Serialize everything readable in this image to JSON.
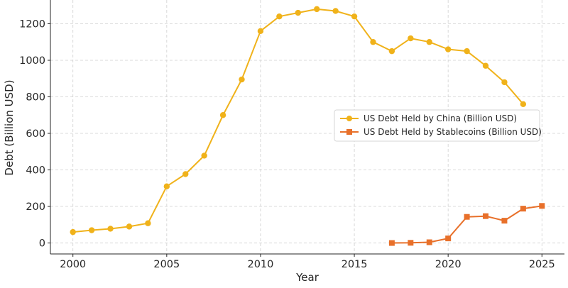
{
  "chart_data": {
    "type": "line",
    "xlabel": "Year",
    "ylabel": "Debt (Billion USD)",
    "xlim": [
      1998.8,
      2026.2
    ],
    "ylim": [
      -60,
      1330
    ],
    "x_ticks": [
      2000,
      2005,
      2010,
      2015,
      2020,
      2025
    ],
    "y_ticks": [
      0,
      200,
      400,
      600,
      800,
      1000,
      1200
    ],
    "grid": true,
    "legend_position": "center-right",
    "series": [
      {
        "name": "US Debt Held by China (Billion USD)",
        "color": "#f0b21a",
        "marker": "circle",
        "x": [
          2000,
          2001,
          2002,
          2003,
          2004,
          2005,
          2006,
          2007,
          2008,
          2009,
          2010,
          2011,
          2012,
          2013,
          2014,
          2015,
          2016,
          2017,
          2018,
          2019,
          2020,
          2021,
          2022,
          2023,
          2024
        ],
        "y": [
          60,
          70,
          78,
          90,
          108,
          310,
          377,
          478,
          700,
          895,
          1160,
          1240,
          1260,
          1280,
          1270,
          1240,
          1100,
          1050,
          1120,
          1100,
          1060,
          1050,
          970,
          880,
          760
        ]
      },
      {
        "name": "US Debt Held by Stablecoins (Billion USD)",
        "color": "#e8702a",
        "marker": "square",
        "x": [
          2017,
          2018,
          2019,
          2020,
          2021,
          2022,
          2023,
          2024,
          2025
        ],
        "y": [
          0,
          1,
          4,
          25,
          143,
          147,
          122,
          188,
          203
        ]
      }
    ]
  }
}
